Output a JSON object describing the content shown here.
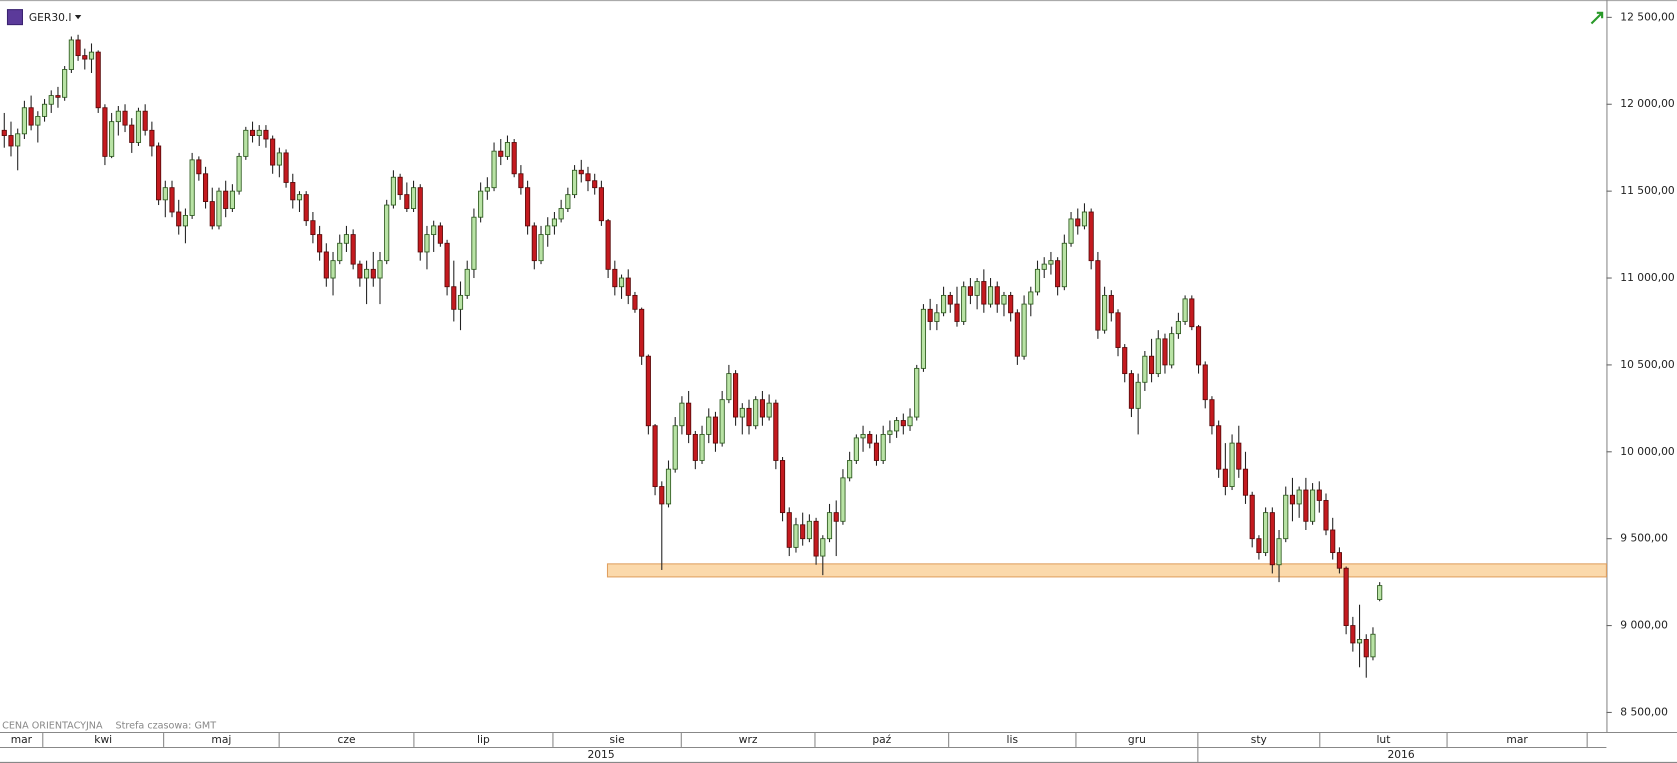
{
  "chart_data": {
    "type": "candlestick",
    "symbol": "GER30.I",
    "note": "CENA ORIENTACYJNA",
    "timezone": "Strefa czasowa: GMT",
    "up_color": "#b9e3a5",
    "down_color": "#c41a1f",
    "ylim": [
      8400,
      12600
    ],
    "yticks": [
      {
        "value": 8500,
        "label": "8 500,00"
      },
      {
        "value": 9000,
        "label": "9 000,00"
      },
      {
        "value": 9500,
        "label": "9 500,00"
      },
      {
        "value": 10000,
        "label": "10 000,00"
      },
      {
        "value": 10500,
        "label": "10 500,00"
      },
      {
        "value": 11000,
        "label": "11 000,00"
      },
      {
        "value": 11500,
        "label": "11 500,00"
      },
      {
        "value": 12000,
        "label": "12 000,00"
      },
      {
        "value": 12500,
        "label": "12 500,00"
      }
    ],
    "months": [
      "mar",
      "kwi",
      "maj",
      "cze",
      "lip",
      "sie",
      "wrz",
      "paź",
      "lis",
      "gru",
      "sty",
      "lut",
      "mar"
    ],
    "years": [
      "2015",
      "2016"
    ],
    "zone": {
      "ylim": [
        9280,
        9355
      ],
      "color": "#fbd9ab"
    },
    "ohlc": [
      [
        11850,
        11950,
        11750,
        11820
      ],
      [
        11820,
        11900,
        11700,
        11760
      ],
      [
        11760,
        11860,
        11620,
        11830
      ],
      [
        11830,
        12020,
        11800,
        11980
      ],
      [
        11980,
        12050,
        11850,
        11880
      ],
      [
        11880,
        11960,
        11780,
        11930
      ],
      [
        11930,
        12030,
        11900,
        12000
      ],
      [
        12000,
        12080,
        11950,
        12050
      ],
      [
        12050,
        12100,
        11980,
        12040
      ],
      [
        12040,
        12220,
        12020,
        12200
      ],
      [
        12200,
        12390,
        12180,
        12370
      ],
      [
        12370,
        12400,
        12250,
        12280
      ],
      [
        12280,
        12320,
        12200,
        12260
      ],
      [
        12260,
        12350,
        12180,
        12300
      ],
      [
        12300,
        12310,
        11950,
        11980
      ],
      [
        11980,
        12000,
        11650,
        11700
      ],
      [
        11700,
        11950,
        11690,
        11900
      ],
      [
        11900,
        11990,
        11820,
        11960
      ],
      [
        11960,
        12000,
        11840,
        11880
      ],
      [
        11880,
        11920,
        11720,
        11780
      ],
      [
        11780,
        11980,
        11760,
        11960
      ],
      [
        11960,
        12000,
        11820,
        11850
      ],
      [
        11850,
        11900,
        11700,
        11760
      ],
      [
        11760,
        11780,
        11420,
        11450
      ],
      [
        11450,
        11560,
        11350,
        11520
      ],
      [
        11520,
        11560,
        11350,
        11380
      ],
      [
        11380,
        11450,
        11250,
        11300
      ],
      [
        11300,
        11400,
        11200,
        11360
      ],
      [
        11360,
        11720,
        11340,
        11680
      ],
      [
        11680,
        11700,
        11560,
        11600
      ],
      [
        11600,
        11640,
        11400,
        11440
      ],
      [
        11440,
        11520,
        11280,
        11300
      ],
      [
        11300,
        11520,
        11280,
        11500
      ],
      [
        11500,
        11560,
        11350,
        11400
      ],
      [
        11400,
        11540,
        11380,
        11500
      ],
      [
        11500,
        11720,
        11480,
        11700
      ],
      [
        11700,
        11870,
        11680,
        11850
      ],
      [
        11850,
        11900,
        11780,
        11820
      ],
      [
        11820,
        11880,
        11760,
        11850
      ],
      [
        11850,
        11880,
        11750,
        11800
      ],
      [
        11800,
        11820,
        11600,
        11650
      ],
      [
        11650,
        11750,
        11580,
        11720
      ],
      [
        11720,
        11740,
        11520,
        11550
      ],
      [
        11550,
        11600,
        11400,
        11450
      ],
      [
        11450,
        11500,
        11380,
        11480
      ],
      [
        11480,
        11500,
        11300,
        11330
      ],
      [
        11330,
        11380,
        11200,
        11250
      ],
      [
        11250,
        11300,
        11100,
        11150
      ],
      [
        11150,
        11200,
        10950,
        11000
      ],
      [
        11000,
        11150,
        10900,
        11100
      ],
      [
        11100,
        11250,
        11080,
        11200
      ],
      [
        11200,
        11300,
        11150,
        11250
      ],
      [
        11250,
        11280,
        11050,
        11080
      ],
      [
        11080,
        11100,
        10950,
        11000
      ],
      [
        11000,
        11100,
        10850,
        11050
      ],
      [
        11050,
        11150,
        10950,
        11000
      ],
      [
        11000,
        11150,
        10850,
        11100
      ],
      [
        11100,
        11450,
        11080,
        11420
      ],
      [
        11420,
        11620,
        11400,
        11580
      ],
      [
        11580,
        11600,
        11450,
        11480
      ],
      [
        11480,
        11550,
        11380,
        11400
      ],
      [
        11400,
        11560,
        11380,
        11520
      ],
      [
        11520,
        11540,
        11100,
        11150
      ],
      [
        11150,
        11300,
        11050,
        11250
      ],
      [
        11250,
        11330,
        11150,
        11300
      ],
      [
        11300,
        11320,
        11180,
        11200
      ],
      [
        11200,
        11220,
        10900,
        10950
      ],
      [
        10950,
        11100,
        10750,
        10820
      ],
      [
        10820,
        10980,
        10700,
        10900
      ],
      [
        10900,
        11100,
        10880,
        11050
      ],
      [
        11050,
        11400,
        11000,
        11350
      ],
      [
        11350,
        11550,
        11320,
        11500
      ],
      [
        11500,
        11580,
        11450,
        11520
      ],
      [
        11520,
        11780,
        11500,
        11730
      ],
      [
        11730,
        11800,
        11650,
        11700
      ],
      [
        11700,
        11820,
        11680,
        11780
      ],
      [
        11780,
        11800,
        11580,
        11600
      ],
      [
        11600,
        11650,
        11480,
        11520
      ],
      [
        11520,
        11560,
        11250,
        11300
      ],
      [
        11300,
        11320,
        11050,
        11100
      ],
      [
        11100,
        11300,
        11080,
        11250
      ],
      [
        11250,
        11350,
        11180,
        11300
      ],
      [
        11300,
        11380,
        11250,
        11340
      ],
      [
        11340,
        11450,
        11320,
        11400
      ],
      [
        11400,
        11520,
        11380,
        11480
      ],
      [
        11480,
        11650,
        11460,
        11620
      ],
      [
        11620,
        11680,
        11550,
        11600
      ],
      [
        11600,
        11640,
        11500,
        11560
      ],
      [
        11560,
        11600,
        11480,
        11520
      ],
      [
        11520,
        11560,
        11300,
        11330
      ],
      [
        11330,
        11340,
        11000,
        11050
      ],
      [
        11050,
        11100,
        10900,
        10950
      ],
      [
        10950,
        11020,
        10880,
        11000
      ],
      [
        11000,
        11050,
        10850,
        10900
      ],
      [
        10900,
        10920,
        10800,
        10820
      ],
      [
        10820,
        10830,
        10500,
        10550
      ],
      [
        10550,
        10560,
        10100,
        10150
      ],
      [
        10150,
        10160,
        9750,
        9800
      ],
      [
        9800,
        9830,
        9320,
        9700
      ],
      [
        9700,
        9950,
        9680,
        9900
      ],
      [
        9900,
        10200,
        9880,
        10150
      ],
      [
        10150,
        10320,
        10100,
        10280
      ],
      [
        10280,
        10350,
        10050,
        10100
      ],
      [
        10100,
        10120,
        9900,
        9950
      ],
      [
        9950,
        10150,
        9930,
        10100
      ],
      [
        10100,
        10250,
        10050,
        10200
      ],
      [
        10200,
        10230,
        10000,
        10050
      ],
      [
        10050,
        10350,
        10030,
        10300
      ],
      [
        10300,
        10500,
        10280,
        10450
      ],
      [
        10450,
        10470,
        10150,
        10200
      ],
      [
        10200,
        10280,
        10100,
        10250
      ],
      [
        10250,
        10300,
        10100,
        10150
      ],
      [
        10150,
        10320,
        10130,
        10300
      ],
      [
        10300,
        10350,
        10150,
        10200
      ],
      [
        10200,
        10330,
        10180,
        10280
      ],
      [
        10280,
        10300,
        9900,
        9950
      ],
      [
        9950,
        9970,
        9600,
        9650
      ],
      [
        9650,
        9680,
        9400,
        9450
      ],
      [
        9450,
        9620,
        9420,
        9580
      ],
      [
        9580,
        9650,
        9460,
        9500
      ],
      [
        9500,
        9640,
        9480,
        9600
      ],
      [
        9600,
        9620,
        9350,
        9400
      ],
      [
        9400,
        9520,
        9290,
        9500
      ],
      [
        9500,
        9700,
        9480,
        9650
      ],
      [
        9650,
        9720,
        9400,
        9600
      ],
      [
        9600,
        9900,
        9580,
        9850
      ],
      [
        9850,
        10000,
        9830,
        9950
      ],
      [
        9950,
        10100,
        9930,
        10080
      ],
      [
        10080,
        10150,
        10000,
        10100
      ],
      [
        10100,
        10120,
        10020,
        10050
      ],
      [
        10050,
        10100,
        9920,
        9950
      ],
      [
        9950,
        10150,
        9930,
        10100
      ],
      [
        10100,
        10180,
        10050,
        10120
      ],
      [
        10120,
        10200,
        10080,
        10180
      ],
      [
        10180,
        10220,
        10100,
        10150
      ],
      [
        10150,
        10250,
        10120,
        10200
      ],
      [
        10200,
        10500,
        10180,
        10480
      ],
      [
        10480,
        10850,
        10460,
        10820
      ],
      [
        10820,
        10880,
        10700,
        10750
      ],
      [
        10750,
        10850,
        10700,
        10800
      ],
      [
        10800,
        10950,
        10780,
        10900
      ],
      [
        10900,
        10920,
        10800,
        10850
      ],
      [
        10850,
        10950,
        10720,
        10750
      ],
      [
        10750,
        10980,
        10730,
        10950
      ],
      [
        10950,
        11000,
        10850,
        10900
      ],
      [
        10900,
        11000,
        10820,
        10980
      ],
      [
        10980,
        11050,
        10800,
        10850
      ],
      [
        10850,
        11000,
        10830,
        10950
      ],
      [
        10950,
        10980,
        10800,
        10850
      ],
      [
        10850,
        10920,
        10780,
        10900
      ],
      [
        10900,
        10920,
        10750,
        10800
      ],
      [
        10800,
        10820,
        10500,
        10550
      ],
      [
        10550,
        10900,
        10530,
        10850
      ],
      [
        10850,
        10950,
        10780,
        10920
      ],
      [
        10920,
        11100,
        10900,
        11050
      ],
      [
        11050,
        11120,
        11000,
        11080
      ],
      [
        11080,
        11150,
        11020,
        11100
      ],
      [
        11100,
        11120,
        10900,
        10950
      ],
      [
        10950,
        11250,
        10930,
        11200
      ],
      [
        11200,
        11380,
        11180,
        11340
      ],
      [
        11340,
        11400,
        11250,
        11300
      ],
      [
        11300,
        11430,
        11280,
        11380
      ],
      [
        11380,
        11400,
        11050,
        11100
      ],
      [
        11100,
        11150,
        10650,
        10700
      ],
      [
        10700,
        10950,
        10680,
        10900
      ],
      [
        10900,
        10930,
        10750,
        10800
      ],
      [
        10800,
        10820,
        10550,
        10600
      ],
      [
        10600,
        10620,
        10400,
        10450
      ],
      [
        10450,
        10470,
        10200,
        10250
      ],
      [
        10250,
        10450,
        10100,
        10400
      ],
      [
        10400,
        10580,
        10350,
        10550
      ],
      [
        10550,
        10650,
        10400,
        10450
      ],
      [
        10450,
        10700,
        10430,
        10650
      ],
      [
        10650,
        10680,
        10450,
        10500
      ],
      [
        10500,
        10720,
        10480,
        10680
      ],
      [
        10680,
        10800,
        10650,
        10750
      ],
      [
        10750,
        10900,
        10730,
        10880
      ],
      [
        10880,
        10900,
        10700,
        10720
      ],
      [
        10720,
        10730,
        10450,
        10500
      ],
      [
        10500,
        10520,
        10250,
        10300
      ],
      [
        10300,
        10320,
        10100,
        10150
      ],
      [
        10150,
        10180,
        9850,
        9900
      ],
      [
        9900,
        10050,
        9750,
        9800
      ],
      [
        9800,
        10100,
        9780,
        10050
      ],
      [
        10050,
        10150,
        9850,
        9900
      ],
      [
        9900,
        10000,
        9700,
        9750
      ],
      [
        9750,
        9770,
        9450,
        9500
      ],
      [
        9500,
        9520,
        9380,
        9420
      ],
      [
        9420,
        9680,
        9400,
        9650
      ],
      [
        9650,
        9680,
        9300,
        9350
      ],
      [
        9350,
        9550,
        9250,
        9500
      ],
      [
        9500,
        9800,
        9480,
        9750
      ],
      [
        9750,
        9850,
        9600,
        9700
      ],
      [
        9700,
        9800,
        9620,
        9780
      ],
      [
        9780,
        9850,
        9550,
        9600
      ],
      [
        9600,
        9820,
        9580,
        9780
      ],
      [
        9780,
        9830,
        9650,
        9720
      ],
      [
        9720,
        9760,
        9520,
        9550
      ],
      [
        9550,
        9620,
        9380,
        9420
      ],
      [
        9420,
        9450,
        9300,
        9330
      ],
      [
        9330,
        9340,
        8950,
        9000
      ],
      [
        9000,
        9050,
        8850,
        8900
      ],
      [
        8900,
        9120,
        8760,
        8920
      ],
      [
        8920,
        8950,
        8700,
        8820
      ],
      [
        8820,
        8990,
        8800,
        8950
      ],
      [
        9150,
        9250,
        9140,
        9230
      ]
    ]
  }
}
